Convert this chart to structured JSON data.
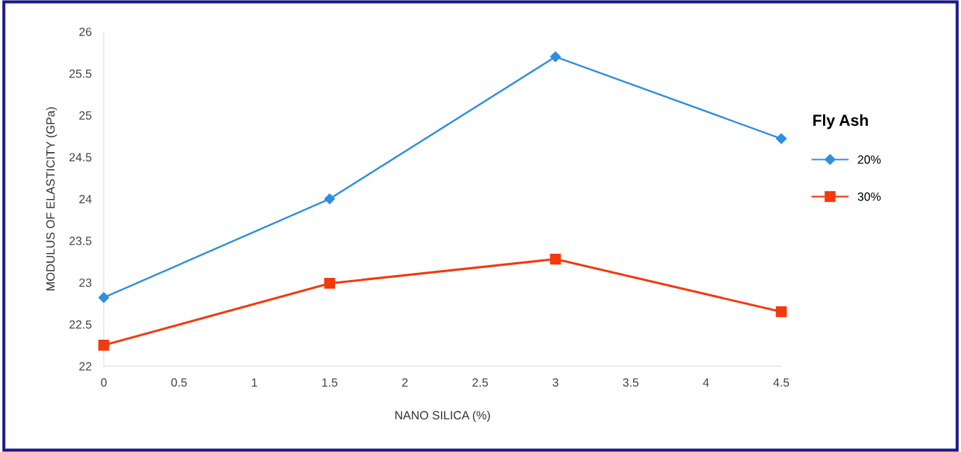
{
  "chart_data": {
    "type": "line",
    "xlabel": "NANO SILICA (%)",
    "ylabel": "MODULUS OF ELASTICITY (GPa)",
    "legend_title": "Fly Ash",
    "x": [
      0,
      1.5,
      3,
      4.5
    ],
    "series": [
      {
        "name": "20%",
        "color": "#2e8ee0",
        "marker": "diamond",
        "values": [
          22.82,
          24.0,
          25.7,
          24.72
        ]
      },
      {
        "name": "30%",
        "color": "#f23a0c",
        "marker": "square",
        "values": [
          22.25,
          22.99,
          23.28,
          22.65
        ]
      }
    ],
    "xlim": [
      0,
      4.5
    ],
    "xticks": [
      0,
      0.5,
      1,
      1.5,
      2,
      2.5,
      3,
      3.5,
      4,
      4.5
    ],
    "ylim": [
      22,
      26
    ],
    "yticks": [
      22,
      22.5,
      23,
      23.5,
      24,
      24.5,
      25,
      25.5,
      26
    ],
    "grid": false,
    "legend": "right",
    "line_style": "solid"
  }
}
